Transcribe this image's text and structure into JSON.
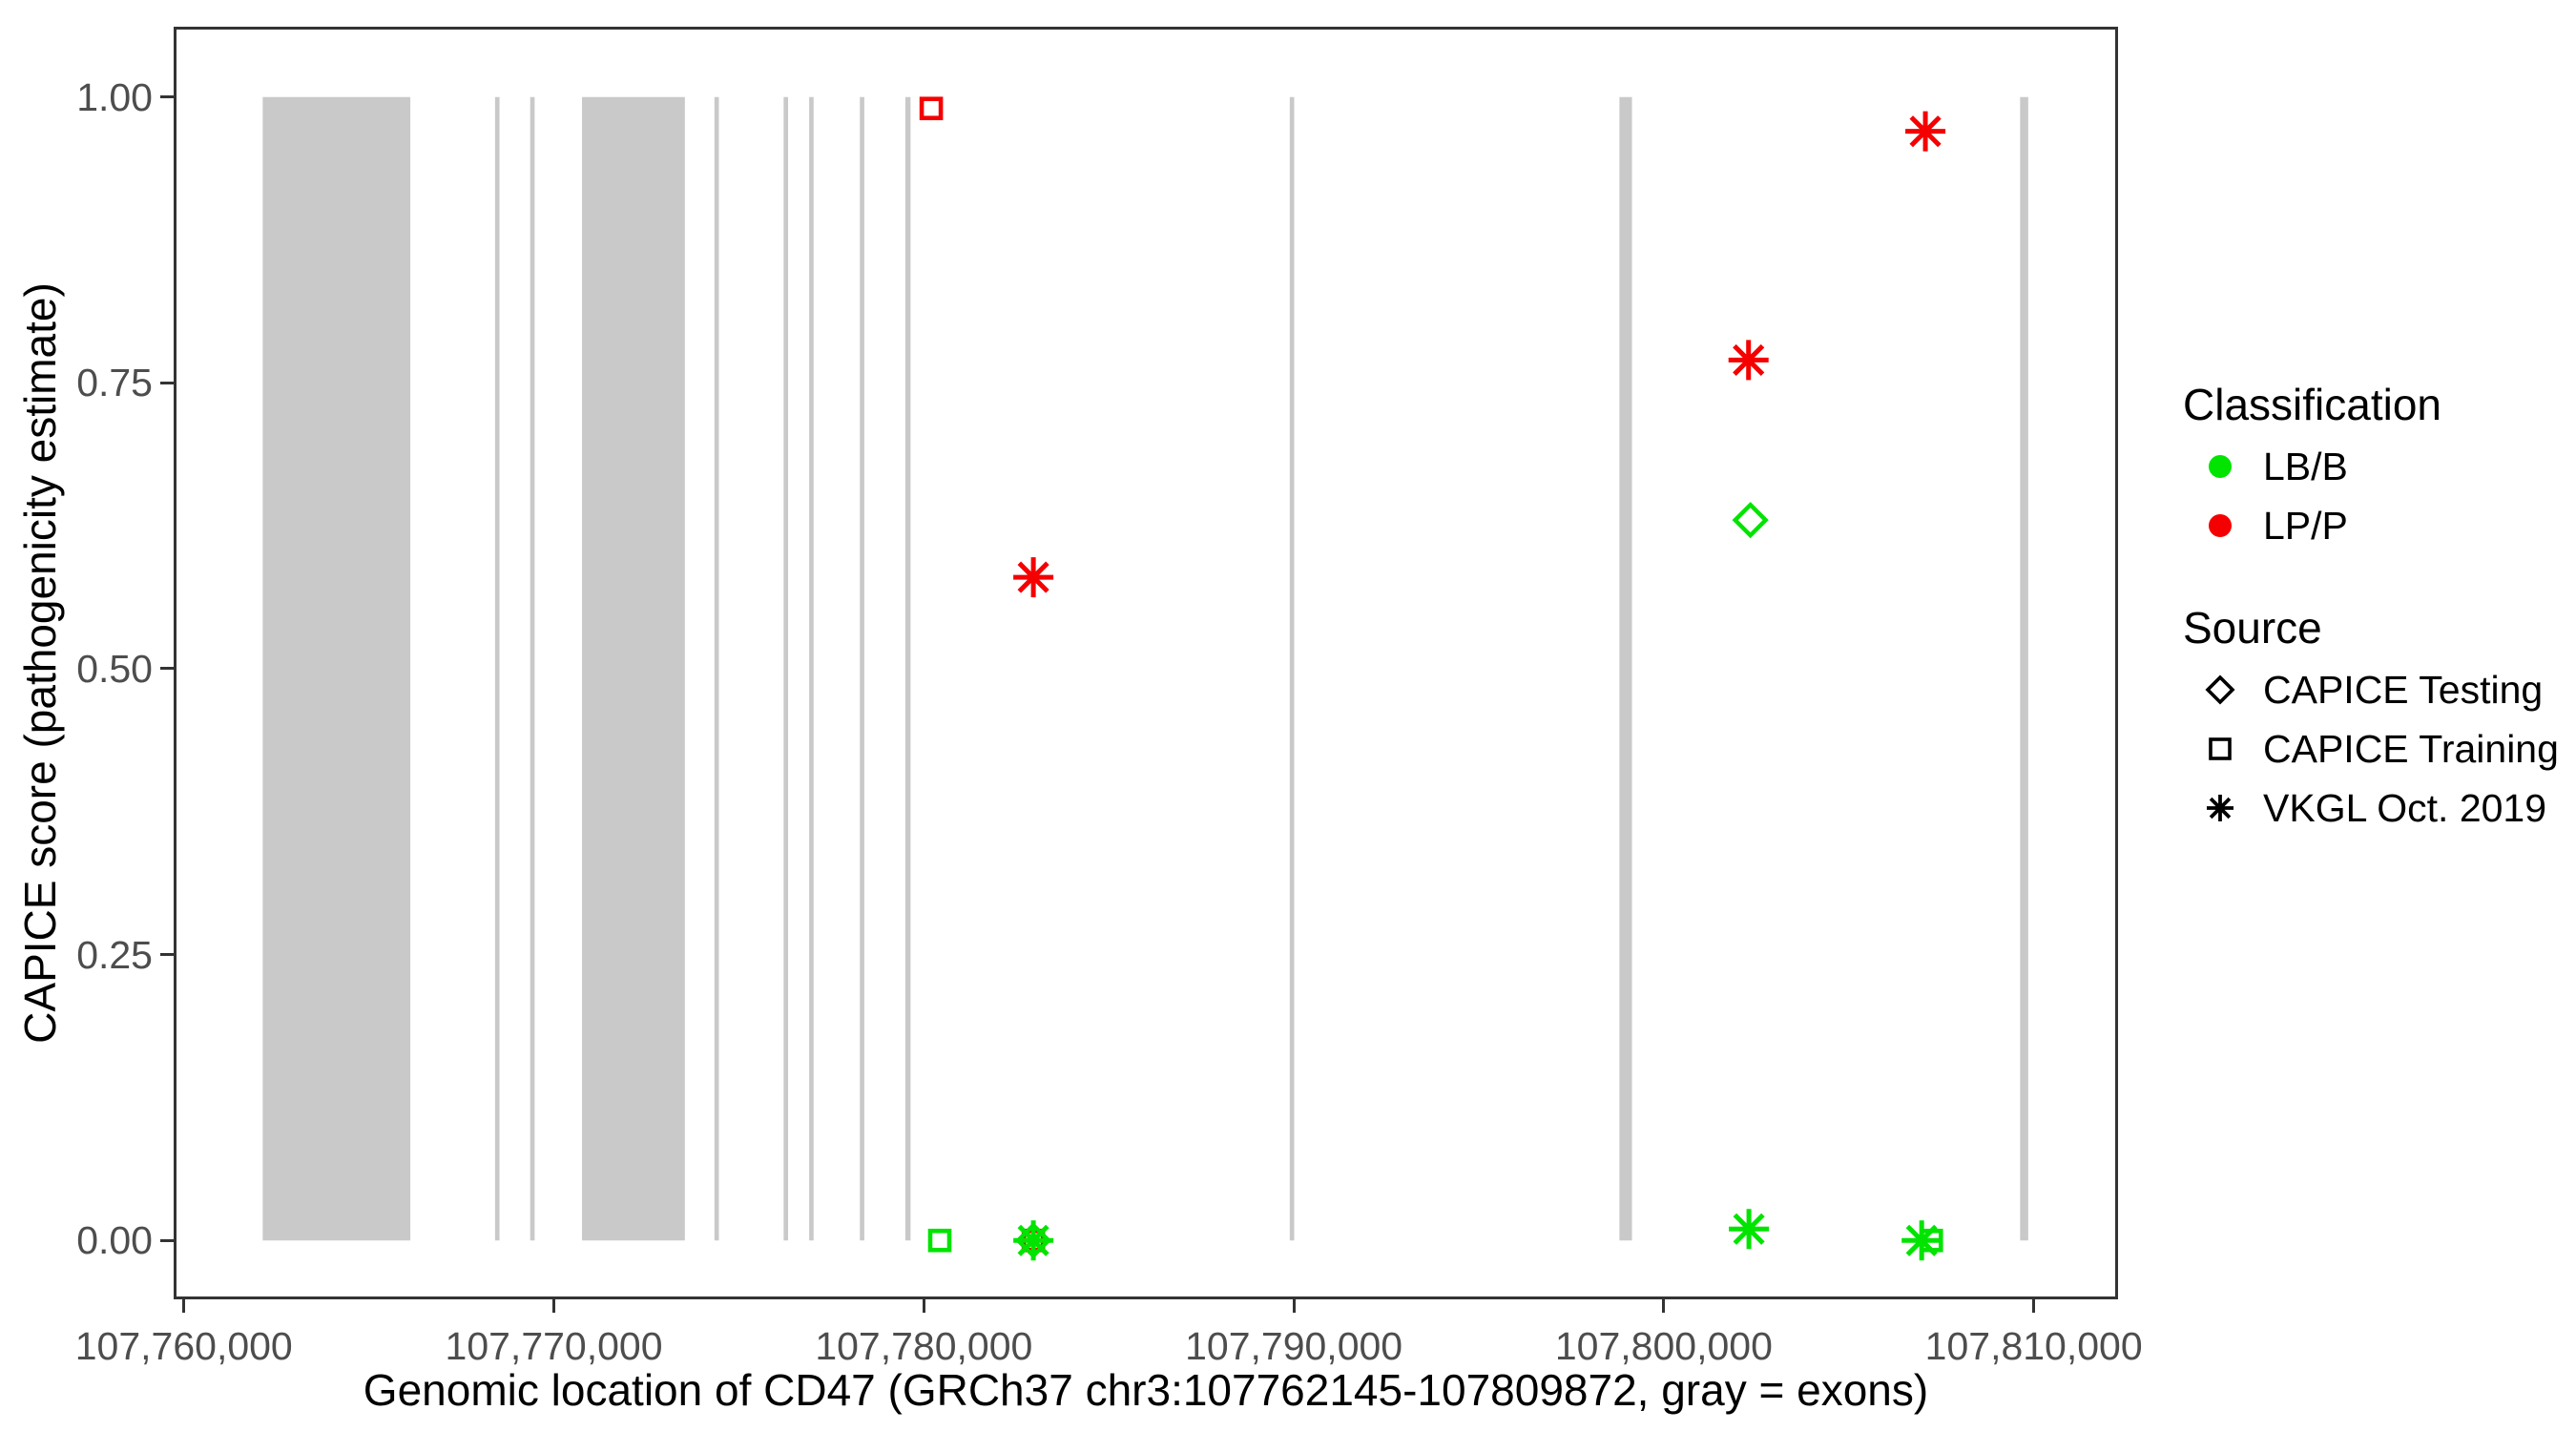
{
  "chart_data": {
    "type": "scatter",
    "title": "",
    "xlabel": "Genomic location of CD47 (GRCh37 chr3:107762145-107809872, gray = exons)",
    "ylabel": "CAPICE score (pathogenicity estimate)",
    "xlim": [
      107759800,
      107812200
    ],
    "ylim": [
      -0.049,
      1.059
    ],
    "grid": "off",
    "legend_position": "right",
    "x_axis": {
      "ticks": [
        {
          "bp": 107760000,
          "label": "107,760,000"
        },
        {
          "bp": 107770000,
          "label": "107,770,000"
        },
        {
          "bp": 107780000,
          "label": "107,780,000"
        },
        {
          "bp": 107790000,
          "label": "107,790,000"
        },
        {
          "bp": 107800000,
          "label": "107,800,000"
        },
        {
          "bp": 107810000,
          "label": "107,810,000"
        }
      ]
    },
    "y_axis": {
      "ticks": [
        {
          "value": 0,
          "label": "0.00"
        },
        {
          "value": 0.25,
          "label": "0.25"
        },
        {
          "value": 0.5,
          "label": "0.50"
        },
        {
          "value": 0.75,
          "label": "0.75"
        },
        {
          "value": 1,
          "label": "1.00"
        }
      ]
    },
    "exons": [
      {
        "start": 107762130,
        "end": 107766120
      },
      {
        "start": 107768410,
        "end": 107768530
      },
      {
        "start": 107769360,
        "end": 107769480
      },
      {
        "start": 107770760,
        "end": 107773540
      },
      {
        "start": 107774340,
        "end": 107774460
      },
      {
        "start": 107776210,
        "end": 107776330
      },
      {
        "start": 107776900,
        "end": 107777020
      },
      {
        "start": 107778270,
        "end": 107778390
      },
      {
        "start": 107779500,
        "end": 107779640
      },
      {
        "start": 107789890,
        "end": 107790010
      },
      {
        "start": 107798800,
        "end": 107799140
      },
      {
        "start": 107809630,
        "end": 107809850
      }
    ],
    "points": [
      {
        "bp": 107780200,
        "score": 0.99,
        "classification": "LP/P",
        "source": "CAPICE Training",
        "shape": "square"
      },
      {
        "bp": 107782960,
        "score": 0.58,
        "classification": "LP/P",
        "source": "VKGL Oct. 2019",
        "shape": "asterisk"
      },
      {
        "bp": 107782960,
        "score": 0.0,
        "classification": "LP/P",
        "source": "CAPICE Training",
        "shape": "square"
      },
      {
        "bp": 107802290,
        "score": 0.77,
        "classification": "LP/P",
        "source": "VKGL Oct. 2019",
        "shape": "asterisk"
      },
      {
        "bp": 107807070,
        "score": 0.97,
        "classification": "LP/P",
        "source": "VKGL Oct. 2019",
        "shape": "asterisk"
      },
      {
        "bp": 107780430,
        "score": 0.0,
        "classification": "LB/B",
        "source": "CAPICE Training",
        "shape": "square"
      },
      {
        "bp": 107802340,
        "score": 0.63,
        "classification": "LB/B",
        "source": "CAPICE Testing",
        "shape": "diamond"
      },
      {
        "bp": 107782960,
        "score": 0.0,
        "classification": "LB/B",
        "source": "CAPICE Testing",
        "shape": "diamond"
      },
      {
        "bp": 107782960,
        "score": 0.0,
        "classification": "LB/B",
        "source": "VKGL Oct. 2019",
        "shape": "asterisk"
      },
      {
        "bp": 107802300,
        "score": 0.01,
        "classification": "LB/B",
        "source": "VKGL Oct. 2019",
        "shape": "asterisk"
      },
      {
        "bp": 107806970,
        "score": 0.0,
        "classification": "LB/B",
        "source": "VKGL Oct. 2019",
        "shape": "asterisk"
      },
      {
        "bp": 107807230,
        "score": 0.0,
        "classification": "LB/B",
        "source": "CAPICE Training",
        "shape": "square"
      }
    ],
    "legend": {
      "classification": {
        "title": "Classification",
        "items": [
          {
            "label": "LB/B",
            "glyph": "circle",
            "color": "#00E400"
          },
          {
            "label": "LP/P",
            "glyph": "circle",
            "color": "#F40000"
          }
        ]
      },
      "source": {
        "title": "Source",
        "items": [
          {
            "label": "CAPICE Testing",
            "glyph": "diamond"
          },
          {
            "label": "CAPICE Training",
            "glyph": "square"
          },
          {
            "label": "VKGL Oct. 2019",
            "glyph": "asterisk"
          }
        ]
      }
    },
    "colors": {
      "lbb_green": "#00E400",
      "lpp_red": "#F40000",
      "exon_gray": "#C9C9C9",
      "tick_text": "#4D4D4D",
      "title_text": "#000000",
      "panel_border": "#333333",
      "background": "#FFFFFF"
    }
  }
}
